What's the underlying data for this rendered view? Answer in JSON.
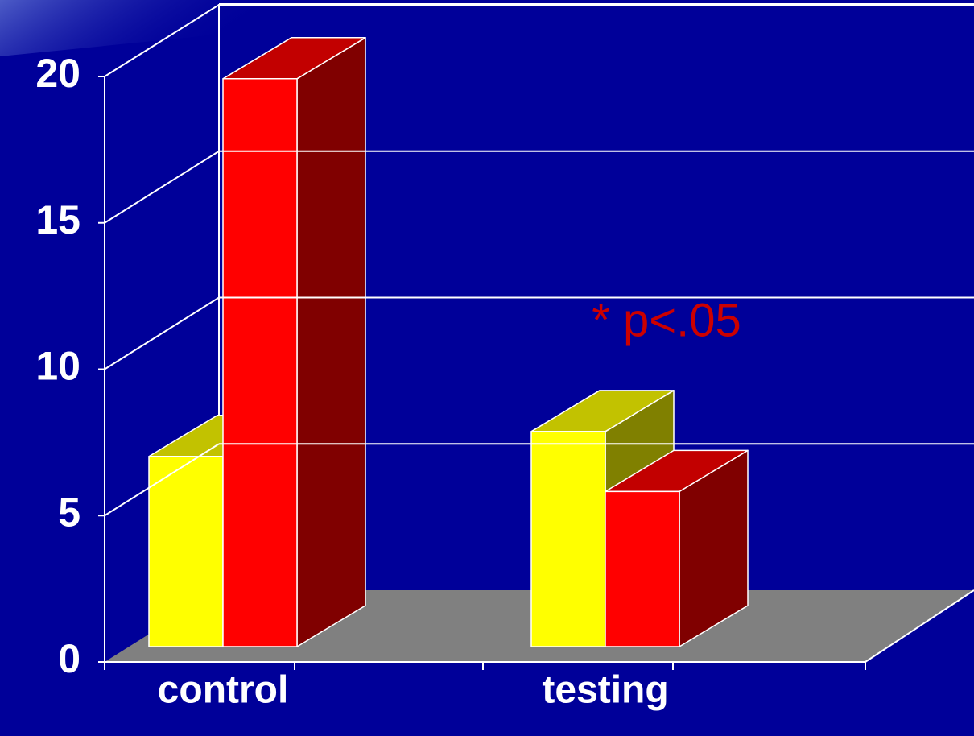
{
  "chart_data": {
    "type": "bar3d",
    "categories": [
      "control",
      "testing"
    ],
    "series": [
      {
        "color": "#ffff00",
        "values": [
          6.5,
          7.35
        ]
      },
      {
        "color": "#ff0000",
        "values": [
          19.4,
          5.3
        ]
      }
    ],
    "ylim": [
      0,
      20
    ],
    "yticks": [
      0,
      5,
      10,
      15,
      20
    ],
    "grid": true,
    "annotation": "* p<.05"
  }
}
